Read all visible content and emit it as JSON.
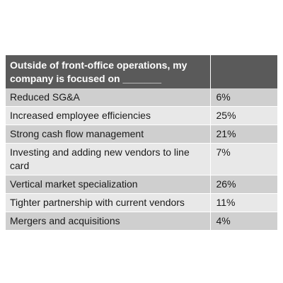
{
  "table": {
    "header": {
      "question": "Outside of front-office operations, my company is focused on _______",
      "value": ""
    },
    "rows": [
      {
        "label": "Reduced SG&A",
        "value": "6%"
      },
      {
        "label": "Increased employee efficiencies",
        "value": "25%"
      },
      {
        "label": "Strong cash flow management",
        "value": "21%"
      },
      {
        "label": "Investing and adding new vendors to line card",
        "value": "7%"
      },
      {
        "label": "Vertical market specialization",
        "value": "26%"
      },
      {
        "label": "Tighter partnership with current vendors",
        "value": "11%"
      },
      {
        "label": "Mergers and acquisitions",
        "value": "4%"
      }
    ]
  },
  "colors": {
    "header_bg": "#5a5a5a",
    "row_dark": "#cfcfcf",
    "row_light": "#e8e8e8"
  }
}
